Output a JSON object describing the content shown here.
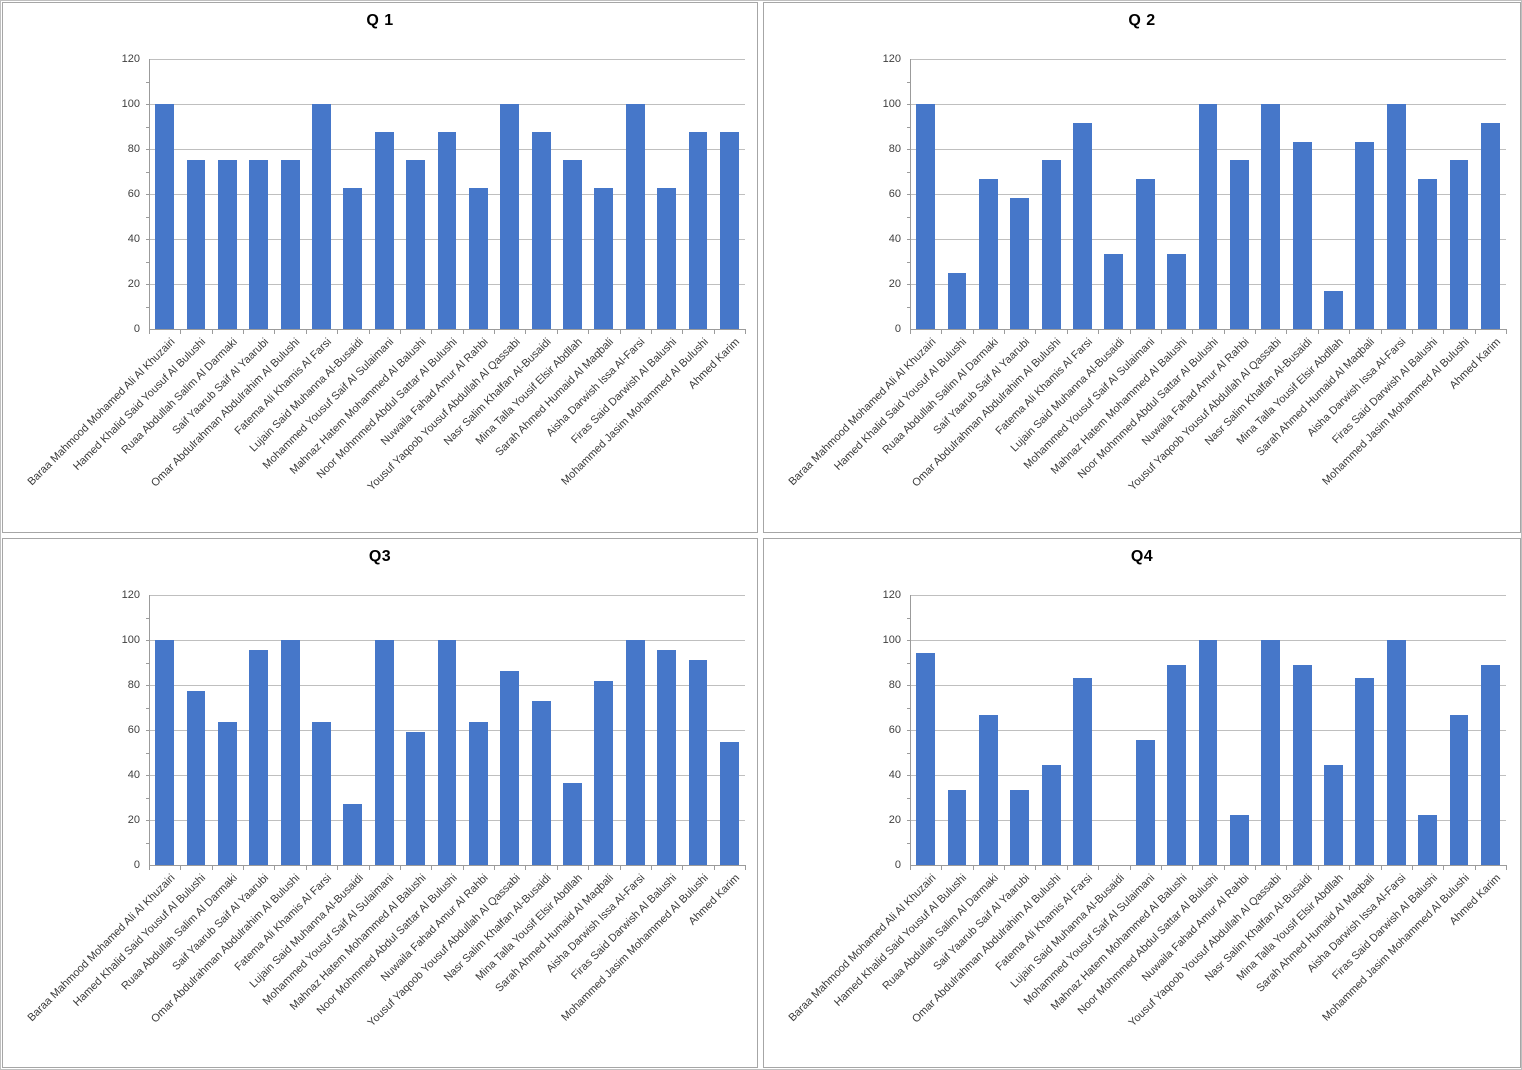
{
  "style": {
    "bar_color": "#4677c9",
    "gridline_color": "#bfbfbf",
    "axis_color": "#9b9b9b",
    "panel_border_color": "#a6a6a6",
    "axis_label_color": "#404040",
    "category_label_color": "#3a3a3a",
    "title_color": "#000000",
    "background": "#ffffff"
  },
  "chart_data": [
    {
      "type": "bar",
      "title": "Q 1",
      "xlabel": "",
      "ylabel": "",
      "ylim": [
        0,
        120
      ],
      "yticks": [
        0,
        20,
        40,
        60,
        80,
        100,
        120
      ],
      "grid": true,
      "legend": "none",
      "categories": [
        "Baraa Mahmood Mohamed Ali Al Khuzairi",
        "Hamed Khalid Said Yousuf Al Bulushi",
        "Ruaa Abdullah Salim Al Darmaki",
        "Saif Yaarub Saif Al Yaarubi",
        "Omar Abdulrahman Abdulrahim Al Bulushi",
        "Fatema Ali Khamis Al Farsi",
        "Lujain Said Muhanna Al-Busaidi",
        "Mohammed Yousuf Saif Al Sulaimani",
        "Mahnaz Hatem Mohammed Al Balushi",
        "Noor Mohmmed Abdul Sattar Al Bulushi",
        "Nuwaila Fahad Amur Al Rahbi",
        "Yousuf Yaqoob Yousuf Abdullah Al Qassabi",
        "Nasr Salim Khalfan Al-Busaidi",
        "Mina Talla Yousif Elsir Abdllah",
        "Sarah Ahmed Humaid Al Maqbali",
        "Aisha Darwish Issa Al-Farsi",
        "Firas Said Darwish Al Balushi",
        "Mohammed Jasim Mohammed Al Bulushi",
        "Ahmed Karim"
      ],
      "values": [
        100,
        75,
        75,
        75,
        75,
        100,
        62.5,
        87.5,
        75,
        87.5,
        62.5,
        100,
        87.5,
        75,
        62.5,
        100,
        62.5,
        87.5,
        87.5
      ]
    },
    {
      "type": "bar",
      "title": "Q 2",
      "xlabel": "",
      "ylabel": "",
      "ylim": [
        0,
        120
      ],
      "yticks": [
        0,
        20,
        40,
        60,
        80,
        100,
        120
      ],
      "grid": true,
      "legend": "none",
      "categories": [
        "Baraa Mahmood Mohamed Ali Al Khuzairi",
        "Hamed Khalid Said Yousuf Al Bulushi",
        "Ruaa Abdullah Salim Al Darmaki",
        "Saif Yaarub Saif Al Yaarubi",
        "Omar Abdulrahman Abdulrahim Al Bulushi",
        "Fatema Ali Khamis Al Farsi",
        "Lujain Said Muhanna Al-Busaidi",
        "Mohammed Yousuf Saif Al Sulaimani",
        "Mahnaz Hatem Mohammed Al Balushi",
        "Noor Mohmmed Abdul Sattar Al Bulushi",
        "Nuwaila Fahad Amur Al Rahbi",
        "Yousuf Yaqoob Yousuf Abdullah Al Qassabi",
        "Nasr Salim Khalfan Al-Busaidi",
        "Mina Talla Yousif Elsir Abdllah",
        "Sarah Ahmed Humaid Al Maqbali",
        "Aisha Darwish Issa Al-Farsi",
        "Firas Said Darwish Al Balushi",
        "Mohammed Jasim Mohammed Al Bulushi",
        "Ahmed Karim"
      ],
      "values": [
        100,
        25,
        66.7,
        58.3,
        75,
        91.7,
        33.3,
        66.7,
        33.3,
        100,
        75,
        100,
        83.3,
        16.7,
        83.3,
        100,
        66.7,
        75,
        91.7
      ]
    },
    {
      "type": "bar",
      "title": "Q3",
      "xlabel": "",
      "ylabel": "",
      "ylim": [
        0,
        120
      ],
      "yticks": [
        0,
        20,
        40,
        60,
        80,
        100,
        120
      ],
      "grid": true,
      "legend": "none",
      "categories": [
        "Baraa Mahmood Mohamed Ali Al Khuzairi",
        "Hamed Khalid Said Yousuf Al Bulushi",
        "Ruaa Abdullah Salim Al Darmaki",
        "Saif Yaarub Saif Al Yaarubi",
        "Omar Abdulrahman Abdulrahim Al Bulushi",
        "Fatema Ali Khamis Al Farsi",
        "Lujain Said Muhanna Al-Busaidi",
        "Mohammed Yousuf Saif Al Sulaimani",
        "Mahnaz Hatem Mohammed Al Balushi",
        "Noor Mohmmed Abdul Sattar Al Bulushi",
        "Nuwaila Fahad Amur Al Rahbi",
        "Yousuf Yaqoob Yousuf Abdullah Al Qassabi",
        "Nasr Salim Khalfan Al-Busaidi",
        "Mina Talla Yousif Elsir Abdllah",
        "Sarah Ahmed Humaid Al Maqbali",
        "Aisha Darwish Issa Al-Farsi",
        "Firas Said Darwish Al Balushi",
        "Mohammed Jasim Mohammed Al Bulushi",
        "Ahmed Karim"
      ],
      "values": [
        100,
        77.3,
        63.6,
        95.5,
        100,
        63.6,
        27.3,
        100,
        59.1,
        100,
        63.6,
        86.4,
        72.7,
        36.4,
        81.8,
        100,
        95.5,
        90.9,
        54.5
      ]
    },
    {
      "type": "bar",
      "title": "Q4",
      "xlabel": "",
      "ylabel": "",
      "ylim": [
        0,
        120
      ],
      "yticks": [
        0,
        20,
        40,
        60,
        80,
        100,
        120
      ],
      "grid": true,
      "legend": "none",
      "categories": [
        "Baraa Mahmood Mohamed Ali Al Khuzairi",
        "Hamed Khalid Said Yousuf Al Bulushi",
        "Ruaa Abdullah Salim Al Darmaki",
        "Saif Yaarub Saif Al Yaarubi",
        "Omar Abdulrahman Abdulrahim Al Bulushi",
        "Fatema Ali Khamis Al Farsi",
        "Lujain Said Muhanna Al-Busaidi",
        "Mohammed Yousuf Saif Al Sulaimani",
        "Mahnaz Hatem Mohammed Al Balushi",
        "Noor Mohmmed Abdul Sattar Al Bulushi",
        "Nuwaila Fahad Amur Al Rahbi",
        "Yousuf Yaqoob Yousuf Abdullah Al Qassabi",
        "Nasr Salim Khalfan Al-Busaidi",
        "Mina Talla Yousif Elsir Abdllah",
        "Sarah Ahmed Humaid Al Maqbali",
        "Aisha Darwish Issa Al-Farsi",
        "Firas Said Darwish Al Balushi",
        "Mohammed Jasim Mohammed Al Bulushi",
        "Ahmed Karim"
      ],
      "values": [
        94.4,
        33.3,
        66.7,
        33.3,
        44.4,
        83.3,
        0,
        55.6,
        88.9,
        100,
        22.2,
        100,
        88.9,
        44.4,
        83.3,
        100,
        22.2,
        66.7,
        88.9
      ]
    }
  ]
}
